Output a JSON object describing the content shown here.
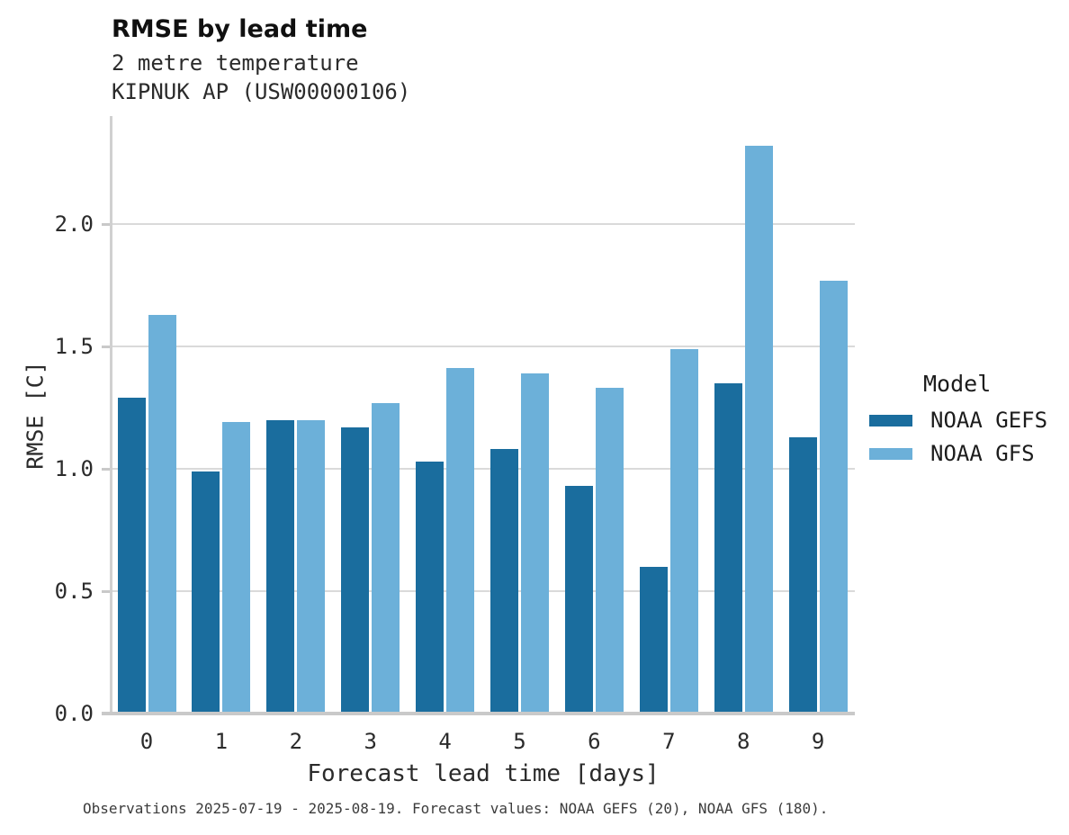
{
  "header": {
    "title": "RMSE by lead time",
    "subtitle_line1": "2 metre temperature",
    "subtitle_line2": "KIPNUK AP (USW00000106)"
  },
  "chart_data": {
    "type": "bar",
    "title": "RMSE by lead time",
    "subtitle": [
      "2 metre temperature",
      "KIPNUK AP (USW00000106)"
    ],
    "categories": [
      "0",
      "1",
      "2",
      "3",
      "4",
      "5",
      "6",
      "7",
      "8",
      "9"
    ],
    "series": [
      {
        "name": "NOAA GEFS",
        "color": "#1a6d9e",
        "values": [
          1.29,
          0.99,
          1.2,
          1.17,
          1.03,
          1.08,
          0.93,
          0.6,
          1.35,
          1.13
        ]
      },
      {
        "name": "NOAA GFS",
        "color": "#6cb0d9",
        "values": [
          1.63,
          1.19,
          1.2,
          1.27,
          1.41,
          1.39,
          1.33,
          1.49,
          2.32,
          1.77
        ]
      }
    ],
    "xlabel": "Forecast lead time [days]",
    "ylabel": "RMSE [C]",
    "ylim": [
      0.0,
      2.4
    ],
    "yticks": [
      0.0,
      0.5,
      1.0,
      1.5,
      2.0
    ],
    "grid": "horizontal",
    "legend_title": "Model",
    "legend_position": "right"
  },
  "legend": {
    "title": "Model",
    "items": [
      {
        "label": "NOAA GEFS",
        "color": "#1a6d9e"
      },
      {
        "label": "NOAA GFS",
        "color": "#6cb0d9"
      }
    ]
  },
  "footer": {
    "caption": "Observations 2025-07-19 - 2025-08-19. Forecast values: NOAA GEFS (20), NOAA GFS (180)."
  },
  "colors": {
    "gefs": "#1a6d9e",
    "gfs": "#6cb0d9",
    "gridline": "#dadada",
    "axis": "#c9c9c9",
    "text": "#2b2b2b"
  }
}
